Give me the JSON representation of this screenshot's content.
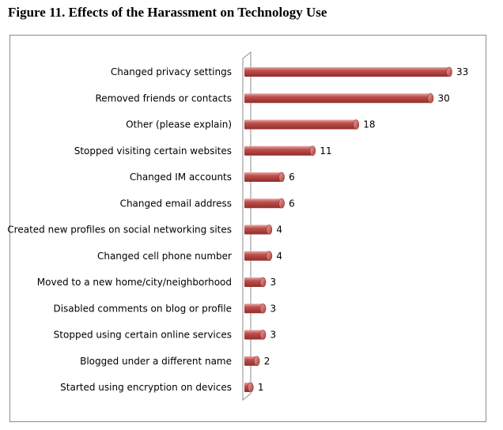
{
  "figure": {
    "title": "Figure 11.  Effects of the Harassment on Technology Use"
  },
  "chart_data": {
    "type": "bar",
    "orientation": "horizontal",
    "title": "",
    "xlabel": "",
    "ylabel": "",
    "xlim": [
      0,
      33
    ],
    "grid": false,
    "legend": "none",
    "bar_color": "#c0504d",
    "categories": [
      "Changed privacy settings",
      "Removed friends or contacts",
      "Other (please explain)",
      "Stopped visiting certain websites",
      "Changed IM accounts",
      "Changed email address",
      "Created new profiles on social networking sites",
      "Changed cell phone number",
      "Moved to a new home/city/neighborhood",
      "Disabled comments on blog or profile",
      "Stopped using certain online services",
      "Blogged under a different name",
      "Started using encryption on devices"
    ],
    "values": [
      33,
      30,
      18,
      11,
      6,
      6,
      4,
      4,
      3,
      3,
      3,
      2,
      1
    ]
  }
}
